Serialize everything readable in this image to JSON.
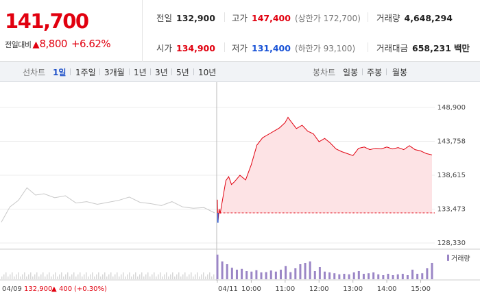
{
  "quote": {
    "current_price": "141,700",
    "change_label": "전일대비",
    "change_arrow": "▲",
    "change_amount": "8,800",
    "change_percent": "+6.62%",
    "prev_close_label": "전일",
    "prev_close": "132,900",
    "high_label": "고가",
    "high": "147,400",
    "upper_limit": "(상한가 172,700)",
    "volume_label": "거래량",
    "volume": "4,648,294",
    "open_label": "시가",
    "open": "134,900",
    "low_label": "저가",
    "low": "131,400",
    "lower_limit": "(하한가 93,100)",
    "trade_value_label": "거래대금",
    "trade_value": "658,231",
    "trade_value_unit": "백만"
  },
  "period_bar": {
    "line_chart_label": "선차트",
    "line_periods": [
      "1일",
      "1주일",
      "3개월",
      "1년",
      "3년",
      "5년",
      "10년"
    ],
    "active_period": "1일",
    "candle_chart_label": "봉차트",
    "candle_periods": [
      "일봉",
      "주봉",
      "월봉"
    ]
  },
  "colors": {
    "up": "#e1000f",
    "down": "#1852d6",
    "prev_day_line": "#c8c8c8",
    "area_fill": "#fde3e5",
    "volume_bar": "#9b86c6"
  },
  "chart_data": {
    "type": "line",
    "ylim": [
      128330,
      148900
    ],
    "y_ticks": [
      "148,900",
      "143,758",
      "138,615",
      "133,473",
      "128,330"
    ],
    "reference_price": 132900,
    "x_labels": [
      "04/09",
      "04/11",
      "10:00",
      "11:00",
      "12:00",
      "13:00",
      "14:00",
      "15:00"
    ],
    "prev_day": {
      "date": "04/09",
      "close": "132,900",
      "change_arrow": "▲",
      "change": "400",
      "change_percent": "(+0.30%)",
      "x": [
        0,
        0.04,
        0.08,
        0.12,
        0.16,
        0.2,
        0.25,
        0.3,
        0.35,
        0.4,
        0.45,
        0.5,
        0.55,
        0.6,
        0.65,
        0.7,
        0.75,
        0.8,
        0.85,
        0.9,
        0.95,
        1.0
      ],
      "values": [
        131500,
        133800,
        134800,
        136700,
        135600,
        135800,
        135200,
        135500,
        134400,
        134600,
        134200,
        134500,
        134800,
        135300,
        134500,
        134300,
        134000,
        134600,
        133800,
        133600,
        133700,
        132900
      ]
    },
    "today": {
      "date": "04/11",
      "times": [
        "09:00",
        "09:01",
        "09:03",
        "09:05",
        "09:10",
        "09:15",
        "09:20",
        "09:25",
        "09:30",
        "09:40",
        "09:50",
        "10:00",
        "10:10",
        "10:20",
        "10:30",
        "10:40",
        "10:50",
        "11:00",
        "11:05",
        "11:10",
        "11:20",
        "11:30",
        "11:40",
        "11:50",
        "12:00",
        "12:10",
        "12:20",
        "12:30",
        "12:40",
        "12:50",
        "13:00",
        "13:10",
        "13:20",
        "13:30",
        "13:40",
        "13:50",
        "14:00",
        "14:10",
        "14:20",
        "14:30",
        "14:40",
        "14:50",
        "15:00",
        "15:10",
        "15:20"
      ],
      "values": [
        134900,
        131400,
        133500,
        132800,
        135300,
        137800,
        138400,
        137200,
        137600,
        138600,
        137900,
        140200,
        143200,
        144300,
        144800,
        145300,
        145800,
        146600,
        147400,
        146800,
        145700,
        146200,
        145300,
        144900,
        143700,
        144200,
        143500,
        142600,
        142200,
        141900,
        141600,
        142700,
        142900,
        142500,
        142700,
        142600,
        142900,
        142600,
        142800,
        142500,
        143100,
        142500,
        142300,
        141900,
        141700
      ]
    },
    "volume_label": "거래량",
    "volume_relative": [
      0.9,
      0.65,
      0.55,
      0.42,
      0.35,
      0.38,
      0.3,
      0.28,
      0.33,
      0.25,
      0.26,
      0.32,
      0.28,
      0.35,
      0.48,
      0.26,
      0.4,
      0.55,
      0.6,
      0.65,
      0.3,
      0.45,
      0.28,
      0.25,
      0.22,
      0.18,
      0.2,
      0.18,
      0.25,
      0.3,
      0.2,
      0.22,
      0.25,
      0.18,
      0.15,
      0.2,
      0.15,
      0.18,
      0.2,
      0.15,
      0.35,
      0.2,
      0.22,
      0.4,
      0.6
    ]
  }
}
